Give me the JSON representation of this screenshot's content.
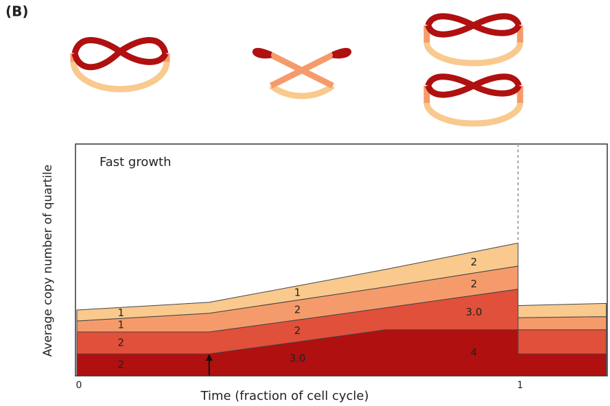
{
  "panel_label": "(B)",
  "chart_data": {
    "type": "stacked-area",
    "title": "Fast growth",
    "x_label": "Time (fraction of cell cycle)",
    "y_label": "Average copy number of quartile",
    "x": [
      0,
      0.3,
      0.7,
      1,
      1,
      1.2
    ],
    "xlim": [
      0,
      1.2
    ],
    "xticks": [
      0,
      1
    ],
    "ylim": [
      0,
      21
    ],
    "series": [
      {
        "color": "#b01010",
        "values": [
          2,
          2,
          4.2,
          4.2,
          2,
          2
        ],
        "labels": [
          "2",
          "3.0",
          "4"
        ]
      },
      {
        "color": "#e0503a",
        "values": [
          2,
          2,
          2,
          3.7,
          2.2,
          2.2
        ],
        "labels": [
          "2",
          "2",
          "3.0"
        ]
      },
      {
        "color": "#f59b6b",
        "values": [
          1,
          1.7,
          1.9,
          2.1,
          1.1,
          1.2
        ],
        "labels": [
          "1",
          "2",
          "2"
        ]
      },
      {
        "color": "#f9c98d",
        "values": [
          1,
          1,
          1.6,
          2.1,
          1.1,
          1.2
        ],
        "labels": [
          "1",
          "1",
          "2"
        ]
      }
    ]
  }
}
